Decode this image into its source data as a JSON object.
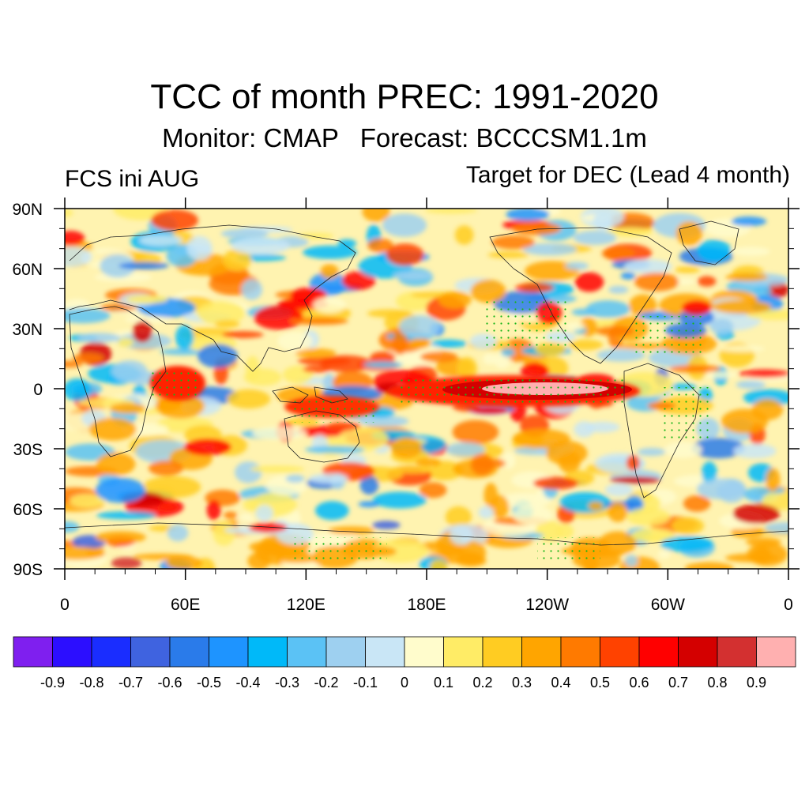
{
  "title": "TCC of month PREC: 1991-2020",
  "subtitle": "Monitor: CMAP   Forecast: BCCCSM1.1m",
  "left_label": "FCS ini AUG",
  "right_label": "Target for DEC (Lead 4 month)",
  "y_ticks": [
    "90N",
    "60N",
    "30N",
    "0",
    "30S",
    "60S",
    "90S"
  ],
  "x_ticks": [
    "0",
    "60E",
    "120E",
    "180E",
    "120W",
    "60W",
    "0"
  ],
  "colorbar": {
    "colors": [
      "#7f1fef",
      "#2c0eff",
      "#1a2dff",
      "#3f63e0",
      "#2a7bea",
      "#1e94ff",
      "#00b9f9",
      "#5bc2f5",
      "#9ed0f0",
      "#c9e6f6",
      "#fffccc",
      "#ffec66",
      "#ffcc22",
      "#ffa500",
      "#ff7a00",
      "#ff4200",
      "#ff0000",
      "#d40000",
      "#d33030",
      "#ffb0b0"
    ],
    "labels": [
      "-0.9",
      "-0.8",
      "-0.7",
      "-0.6",
      "-0.5",
      "-0.4",
      "-0.3",
      "-0.2",
      "-0.1",
      "0",
      "0.1",
      "0.2",
      "0.3",
      "0.4",
      "0.5",
      "0.6",
      "0.7",
      "0.8",
      "0.9"
    ]
  }
}
